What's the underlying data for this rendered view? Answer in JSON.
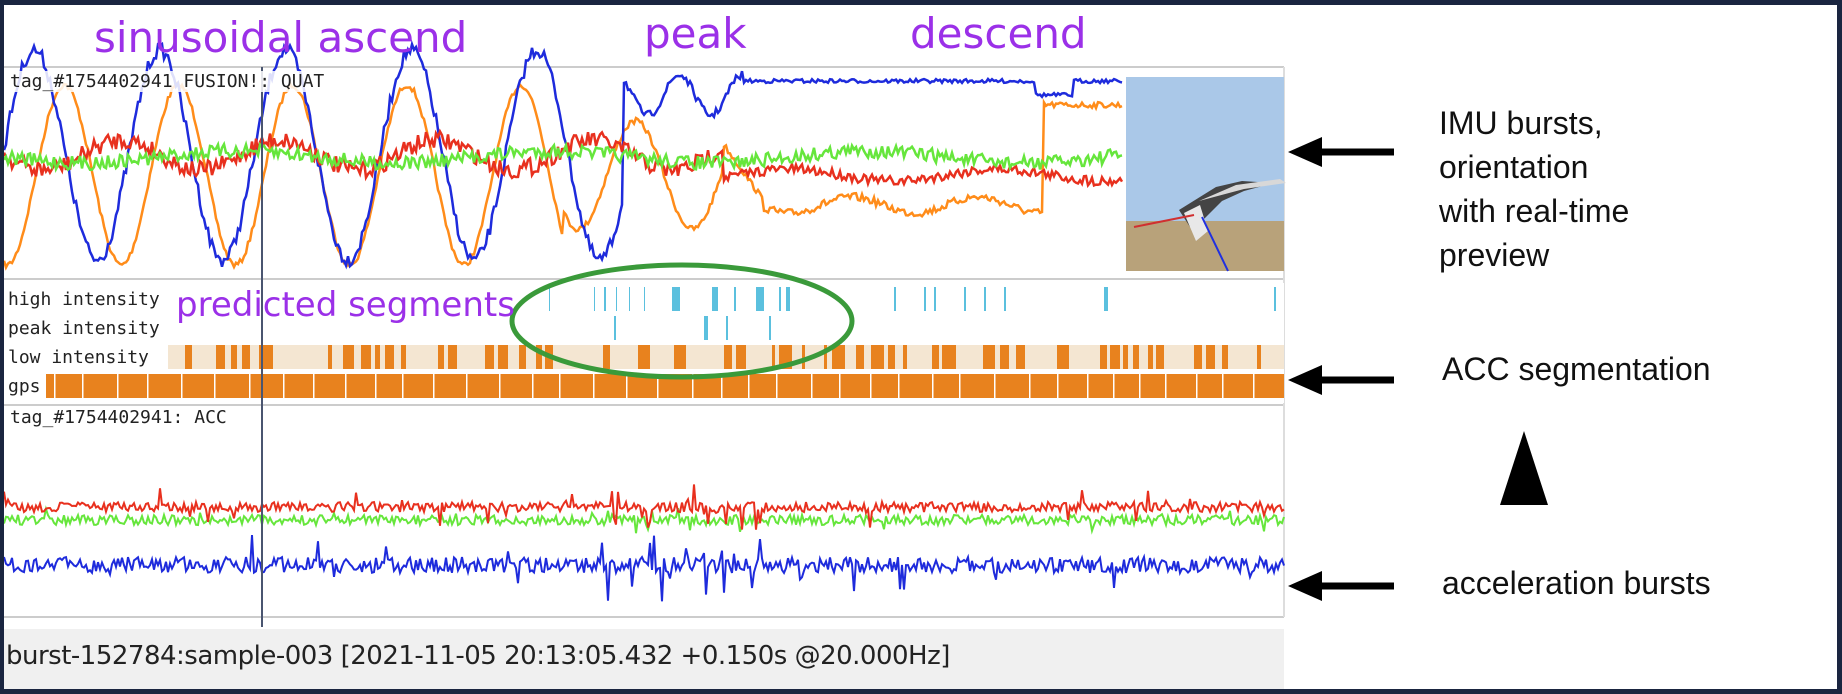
{
  "phases": {
    "ascend": "sinusoidal ascend",
    "peak": "peak",
    "descend": "descend"
  },
  "imu_panel": {
    "title": "tag_#1754402941 FUSION!: QUAT",
    "series_colors": [
      "#ff8c1a",
      "#1e2bdc",
      "#e8301e",
      "#66e63c"
    ]
  },
  "segments": {
    "overlay_label": "predicted segments",
    "rows": [
      {
        "label": "high intensity",
        "color": "#5bc0de"
      },
      {
        "label": "peak intensity",
        "color": "#5bc0de"
      },
      {
        "label": "low intensity",
        "color": "#e8821e"
      },
      {
        "label": "gps",
        "color": "#e8821e"
      }
    ],
    "highlight_color": "#3a9a3a"
  },
  "acc_panel": {
    "title": "tag_#1754402941: ACC",
    "series_colors": [
      "#e8301e",
      "#66e63c",
      "#1e2bdc"
    ]
  },
  "annotations": {
    "imu": "IMU bursts, orientation with real-time preview",
    "imu_lines": [
      "IMU bursts,",
      "orientation",
      "with real-time",
      "preview"
    ],
    "acc_seg": "ACC segmentation",
    "acc_bursts": "acceleration bursts"
  },
  "status": {
    "text": "burst-152784:sample-003 [2021-11-05 20:13:05.432 +0.150s @20.000Hz]"
  }
}
